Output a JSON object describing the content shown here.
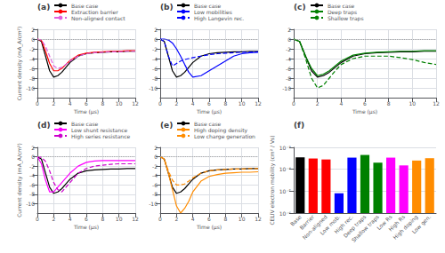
{
  "chart_data": [
    {
      "type": "line",
      "title": "(a)",
      "x": [
        0,
        0.5,
        1,
        1.5,
        2,
        2.5,
        3,
        3.5,
        4,
        5,
        6,
        7,
        8,
        9,
        10,
        11,
        12
      ],
      "xlabel": "Time (μs)",
      "ylabel": "Current density (mA_A/cm²)",
      "xlim": [
        0,
        12
      ],
      "xticks": [
        0,
        2,
        4,
        6,
        8,
        10,
        12
      ],
      "ylim": [
        -12,
        2
      ],
      "yticks": [
        -10,
        -8,
        -6,
        -4,
        -2,
        0,
        2
      ],
      "grid": true,
      "legend": "top",
      "ref_lines": [
        {
          "value": 0,
          "color": "#aaaaaa",
          "line_style": "dotted"
        }
      ],
      "series": [
        {
          "name": "Base case",
          "color": "black",
          "line_style": "solid",
          "values": [
            0,
            -0.5,
            -3.5,
            -6.5,
            -7.8,
            -7.5,
            -6.8,
            -5.8,
            -4.8,
            -3.5,
            -3.0,
            -2.8,
            -2.7,
            -2.6,
            -2.6,
            -2.5,
            -2.5
          ]
        },
        {
          "name": "Extraction barrier",
          "color": "red",
          "line_style": "solid",
          "values": [
            0,
            -0.3,
            -2.5,
            -5.0,
            -6.5,
            -6.5,
            -6.0,
            -5.2,
            -4.4,
            -3.3,
            -2.9,
            -2.7,
            -2.6,
            -2.5,
            -2.5,
            -2.4,
            -2.4
          ]
        },
        {
          "name": "Non-aligned contact",
          "color": "#e060e0",
          "line_style": "dashed",
          "values": [
            0,
            -0.2,
            -1.5,
            -3.5,
            -5.5,
            -6.0,
            -5.8,
            -5.2,
            -4.5,
            -3.5,
            -3.0,
            -2.8,
            -2.7,
            -2.6,
            -2.6,
            -2.5,
            -2.5
          ]
        }
      ]
    },
    {
      "type": "line",
      "title": "(b)",
      "x": [
        0,
        0.5,
        1,
        1.5,
        2,
        2.5,
        3,
        3.5,
        4,
        5,
        6,
        7,
        8,
        9,
        10,
        11,
        12
      ],
      "xlabel": "Time (μs)",
      "xlim": [
        0,
        12
      ],
      "xticks": [
        0,
        2,
        4,
        6,
        8,
        10,
        12
      ],
      "ylim": [
        -12,
        2
      ],
      "yticks": [
        -10,
        -8,
        -6,
        -4,
        -2,
        0,
        2
      ],
      "grid": true,
      "legend": "top",
      "ref_lines": [
        {
          "value": 0,
          "color": "#aaaaaa",
          "line_style": "dotted"
        }
      ],
      "series": [
        {
          "name": "Base case",
          "color": "black",
          "line_style": "solid",
          "values": [
            0,
            -0.5,
            -3.5,
            -6.5,
            -7.8,
            -7.5,
            -6.8,
            -5.8,
            -4.8,
            -3.5,
            -3.0,
            -2.8,
            -2.7,
            -2.6,
            -2.6,
            -2.5,
            -2.5
          ]
        },
        {
          "name": "Low mobilities",
          "color": "blue",
          "line_style": "solid",
          "values": [
            0,
            0,
            -0.2,
            -0.8,
            -2.0,
            -3.5,
            -5.2,
            -6.8,
            -7.8,
            -7.5,
            -6.5,
            -5.5,
            -4.5,
            -3.5,
            -3.0,
            -2.8,
            -2.7
          ]
        },
        {
          "name": "High Langevin rec.",
          "color": "blue",
          "line_style": "dashed",
          "values": [
            0,
            -0.5,
            -3.5,
            -5.5,
            -5.0,
            -4.5,
            -4.2,
            -4.0,
            -3.8,
            -3.5,
            -3.2,
            -3.0,
            -2.9,
            -2.8,
            -2.7,
            -2.7,
            -2.6
          ]
        }
      ]
    },
    {
      "type": "line",
      "title": "(c)",
      "x": [
        0,
        0.5,
        1,
        1.5,
        2,
        2.5,
        3,
        3.5,
        4,
        5,
        6,
        7,
        8,
        9,
        10,
        11,
        12
      ],
      "xlabel": "Time (μs)",
      "xlim": [
        0,
        12
      ],
      "xticks": [
        0,
        2,
        4,
        6,
        8,
        10,
        12
      ],
      "ylim": [
        -12,
        2
      ],
      "yticks": [
        -10,
        -8,
        -6,
        -4,
        -2,
        0,
        2
      ],
      "grid": true,
      "legend": "top",
      "ref_lines": [
        {
          "value": 0,
          "color": "#aaaaaa",
          "line_style": "dotted"
        }
      ],
      "series": [
        {
          "name": "Base case",
          "color": "black",
          "line_style": "solid",
          "values": [
            0,
            -0.5,
            -3.5,
            -6.5,
            -7.8,
            -7.5,
            -6.8,
            -5.8,
            -4.8,
            -3.5,
            -3.0,
            -2.8,
            -2.7,
            -2.6,
            -2.6,
            -2.5,
            -2.5
          ]
        },
        {
          "name": "Deep traps",
          "color": "green",
          "line_style": "solid",
          "values": [
            0,
            -0.5,
            -3.5,
            -6.0,
            -7.5,
            -7.2,
            -6.5,
            -5.5,
            -4.5,
            -3.3,
            -2.9,
            -2.7,
            -2.6,
            -2.5,
            -2.5,
            -2.4,
            -2.4
          ]
        },
        {
          "name": "Shallow traps",
          "color": "green",
          "line_style": "dashed",
          "values": [
            0,
            -0.5,
            -4.0,
            -8.0,
            -10.0,
            -9.5,
            -8.0,
            -6.5,
            -5.2,
            -4.0,
            -3.5,
            -3.5,
            -3.5,
            -3.8,
            -4.2,
            -4.8,
            -5.2
          ]
        }
      ]
    },
    {
      "type": "line",
      "title": "(d)",
      "x": [
        0,
        0.5,
        1,
        1.5,
        2,
        2.5,
        3,
        3.5,
        4,
        5,
        6,
        7,
        8,
        9,
        10,
        11,
        12
      ],
      "xlabel": "Time (μs)",
      "ylabel": "Current density (mA_A/cm²)",
      "xlim": [
        0,
        12
      ],
      "xticks": [
        0,
        2,
        4,
        6,
        8,
        10,
        12
      ],
      "ylim": [
        -12,
        2
      ],
      "yticks": [
        -10,
        -8,
        -6,
        -4,
        -2,
        0,
        2
      ],
      "grid": true,
      "legend": "top",
      "ref_lines": [
        {
          "value": 0,
          "color": "#aaaaaa",
          "line_style": "dotted"
        }
      ],
      "series": [
        {
          "name": "Base case",
          "color": "black",
          "line_style": "solid",
          "values": [
            0,
            -0.5,
            -3.5,
            -6.5,
            -7.8,
            -7.5,
            -6.8,
            -5.8,
            -4.8,
            -3.5,
            -3.0,
            -2.8,
            -2.7,
            -2.6,
            -2.6,
            -2.5,
            -2.5
          ]
        },
        {
          "name": "Low shunt resistance",
          "color": "#ff00ff",
          "line_style": "solid",
          "values": [
            0,
            -1.5,
            -5.0,
            -7.5,
            -7.5,
            -6.5,
            -5.5,
            -4.5,
            -3.5,
            -2.0,
            -1.2,
            -0.9,
            -0.8,
            -0.8,
            -0.8,
            -0.8,
            -0.8
          ]
        },
        {
          "name": "High series resistance",
          "color": "#cc00cc",
          "line_style": "dashed",
          "values": [
            0,
            -0.1,
            -1.0,
            -3.0,
            -5.5,
            -7.0,
            -7.5,
            -6.5,
            -5.5,
            -3.5,
            -2.5,
            -2.0,
            -1.8,
            -1.6,
            -1.5,
            -1.5,
            -1.5
          ]
        }
      ]
    },
    {
      "type": "line",
      "title": "(e)",
      "x": [
        0,
        0.5,
        1,
        1.5,
        2,
        2.5,
        3,
        3.5,
        4,
        5,
        6,
        7,
        8,
        9,
        10,
        11,
        12
      ],
      "xlabel": "Time (μs)",
      "xlim": [
        0,
        12
      ],
      "xticks": [
        0,
        2,
        4,
        6,
        8,
        10,
        12
      ],
      "ylim": [
        -12,
        2
      ],
      "yticks": [
        -10,
        -8,
        -6,
        -4,
        -2,
        0,
        2
      ],
      "grid": true,
      "legend": "top",
      "ref_lines": [
        {
          "value": 0,
          "color": "#aaaaaa",
          "line_style": "dotted"
        }
      ],
      "series": [
        {
          "name": "Base case",
          "color": "black",
          "line_style": "solid",
          "values": [
            0,
            -0.5,
            -3.5,
            -6.5,
            -7.8,
            -7.5,
            -6.8,
            -5.8,
            -4.8,
            -3.5,
            -3.0,
            -2.8,
            -2.7,
            -2.6,
            -2.6,
            -2.5,
            -2.5
          ]
        },
        {
          "name": "High doping density",
          "color": "darkorange",
          "line_style": "solid",
          "values": [
            0,
            -0.5,
            -3.5,
            -7.0,
            -10.5,
            -12.0,
            -11.0,
            -9.5,
            -7.5,
            -5.2,
            -4.2,
            -3.8,
            -3.5,
            -3.4,
            -3.3,
            -3.3,
            -3.2
          ]
        },
        {
          "name": "Low charge generation",
          "color": "darkorange",
          "line_style": "dashed",
          "values": [
            0,
            -0.5,
            -3.0,
            -5.0,
            -6.0,
            -6.0,
            -5.8,
            -5.2,
            -4.5,
            -3.5,
            -3.0,
            -2.8,
            -2.7,
            -2.6,
            -2.6,
            -2.5,
            -2.5
          ]
        }
      ]
    },
    {
      "type": "bar",
      "title": "(f)",
      "categories": [
        "Base",
        "Barrier",
        "Non-aligned",
        "Low mob.",
        "High rec.",
        "Deep traps",
        "Shallow traps",
        "Low Rs",
        "High Rs",
        "High doping",
        "Low gen."
      ],
      "values": [
        0.00035,
        0.00031,
        0.00028,
        8e-06,
        0.00034,
        0.00045,
        0.0002,
        0.00034,
        0.00015,
        0.00025,
        0.00032
      ],
      "colors": [
        "black",
        "red",
        "red",
        "blue",
        "blue",
        "green",
        "green",
        "#ff00ff",
        "#ff00ff",
        "darkorange",
        "darkorange"
      ],
      "ylabel": "CELIV electron mobility (cm² / Vs)",
      "log": "y",
      "ylim": [
        1e-06,
        0.001
      ],
      "yticks": [
        {
          "value": 1e-06,
          "label": "10⁻⁶"
        },
        {
          "value": 1e-05,
          "label": "10⁻⁵"
        },
        {
          "value": 0.0001,
          "label": "10⁻⁴"
        },
        {
          "value": 0.001,
          "label": "10⁻³"
        }
      ],
      "grid": "y",
      "ref_lines": [
        {
          "value": 0.00035,
          "color": "#aaaaaa",
          "line_style": "dashed"
        },
        {
          "value": 0.0001,
          "color": "#aaaaaa",
          "line_style": "dotted"
        }
      ]
    }
  ]
}
